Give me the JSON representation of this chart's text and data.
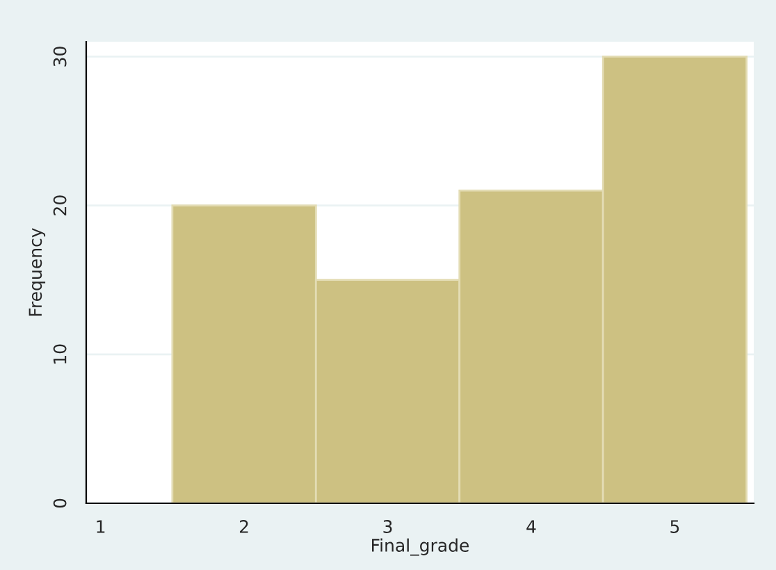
{
  "chart_data": {
    "type": "histogram",
    "xlabel": "Final_grade",
    "ylabel": "Frequency",
    "bins": [
      1.5,
      2.5,
      3.5,
      4.5,
      5.5
    ],
    "values": [
      20,
      15,
      21,
      30
    ],
    "color": "#cdc182",
    "xlim": [
      0.9,
      5.55
    ],
    "ylim": [
      0,
      31
    ],
    "xticks": [
      1,
      2,
      3,
      4,
      5
    ],
    "yticks": [
      0,
      10,
      20,
      30
    ],
    "grid": "y"
  }
}
